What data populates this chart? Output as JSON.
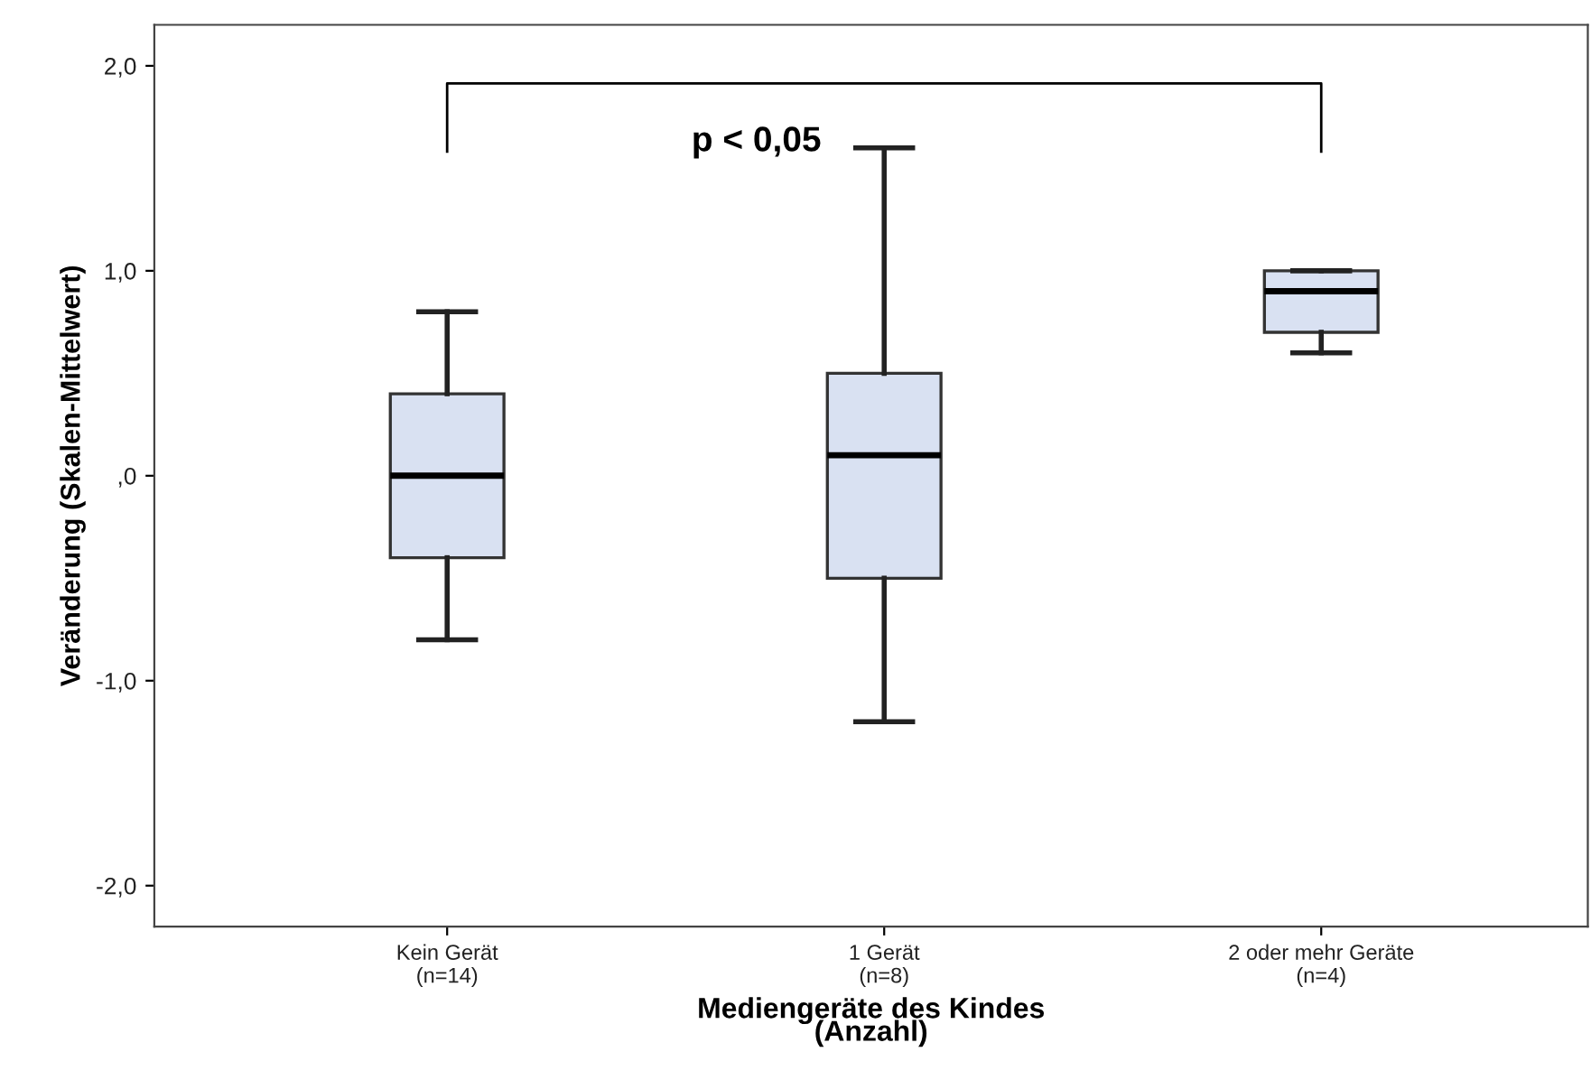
{
  "chart_data": {
    "type": "box",
    "xlabel": "Mediengeräte des Kindes\n(Anzahl)",
    "ylabel": "Veränderung (Skalen-Mittelwert)",
    "categories": [
      "Kein Gerät\n(n=14)",
      "1 Gerät\n(n=8)",
      "2 oder mehr Geräte\n(n=4)"
    ],
    "boxes": [
      {
        "low": -0.8,
        "q1": -0.4,
        "median": 0.0,
        "q3": 0.4,
        "high": 0.8
      },
      {
        "low": -1.2,
        "q1": -0.5,
        "median": 0.1,
        "q3": 0.5,
        "high": 1.6
      },
      {
        "low": 0.6,
        "q1": 0.7,
        "median": 0.9,
        "q3": 1.0,
        "high": 1.0
      }
    ],
    "color": "#d9e1f2",
    "ylim": [
      -2.2,
      2.2
    ],
    "yticks": [
      {
        "value": -2,
        "label": "-2,0"
      },
      {
        "value": -1,
        "label": "-1,0"
      },
      {
        "value": 0,
        "label": ",0"
      },
      {
        "value": 1,
        "label": "1,0"
      },
      {
        "value": 2,
        "label": "2,0"
      }
    ],
    "grid": false,
    "annotations": [
      "p < 0,05"
    ]
  }
}
